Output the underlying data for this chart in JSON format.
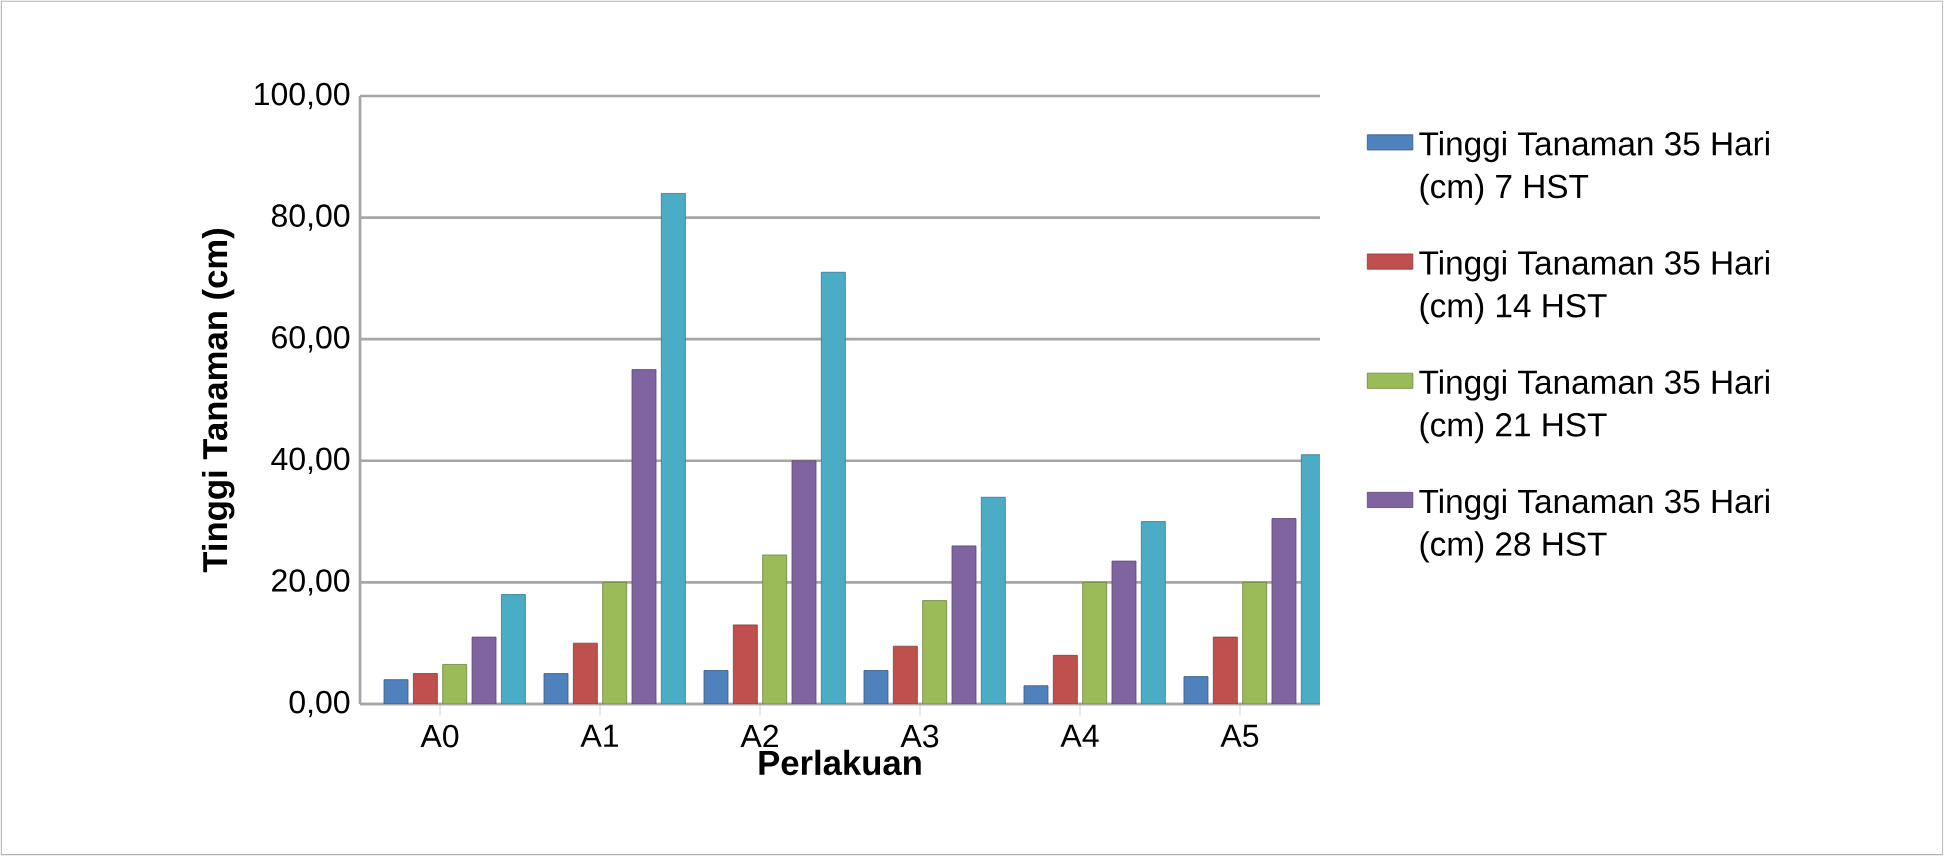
{
  "chart_data": {
    "type": "bar",
    "xlabel": "Perlakuan",
    "ylabel": "Tinggi Tanaman (cm)",
    "categories": [
      "A0",
      "A1",
      "A2",
      "A3",
      "A4",
      "A5"
    ],
    "series": [
      {
        "name": "Tinggi Tanaman 35 Hari (cm) 7 HST",
        "color": "#4f81bd",
        "values": [
          4,
          5,
          5.5,
          5.5,
          3,
          4.5
        ]
      },
      {
        "name": "Tinggi Tanaman 35 Hari (cm) 14 HST",
        "color": "#c0504d",
        "values": [
          5,
          10,
          13,
          9.5,
          8,
          11
        ]
      },
      {
        "name": "Tinggi Tanaman 35 Hari (cm) 21 HST",
        "color": "#9bbb59",
        "values": [
          6.5,
          20,
          24.5,
          17,
          20,
          20
        ]
      },
      {
        "name": "Tinggi Tanaman 35 Hari (cm) 28 HST",
        "color": "#8064a2",
        "values": [
          11,
          55,
          40,
          26,
          23.5,
          30.5
        ]
      },
      {
        "color": "#4bacc6",
        "values": [
          18,
          84,
          71,
          34,
          30,
          41
        ]
      }
    ],
    "ylim": [
      0,
      100
    ],
    "yticks": [
      {
        "value": 0,
        "label": "0,00"
      },
      {
        "value": 20,
        "label": "20,00"
      },
      {
        "value": 40,
        "label": "40,00"
      },
      {
        "value": 60,
        "label": "60,00"
      },
      {
        "value": 80,
        "label": "80,00"
      },
      {
        "value": 100,
        "label": "100,00"
      }
    ],
    "grid": "y",
    "legend": "right"
  }
}
